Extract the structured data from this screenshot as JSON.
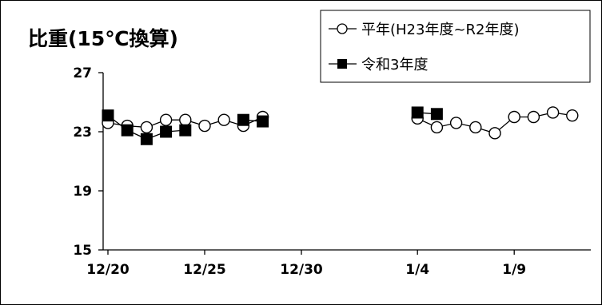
{
  "chart_data": {
    "type": "line",
    "title": "比重(15℃換算)",
    "xlabel": "",
    "ylabel": "",
    "ylim": [
      15,
      27
    ],
    "yticks": [
      "15",
      "19",
      "23",
      "27"
    ],
    "xticks": [
      "12/20",
      "12/25",
      "12/30",
      "1/4",
      "1/9"
    ],
    "legend_position": "top-right",
    "series": [
      {
        "name": "平年(H23年度~R2年度)",
        "marker": "open-circle",
        "color": "#000000",
        "segments": [
          {
            "x": [
              "12/20",
              "12/21",
              "12/22",
              "12/23",
              "12/24",
              "12/25",
              "12/26",
              "12/27",
              "12/28"
            ],
            "y": [
              23.6,
              23.4,
              23.3,
              23.8,
              23.8,
              23.4,
              23.8,
              23.4,
              24.0
            ]
          },
          {
            "x": [
              "1/4",
              "1/5",
              "1/6",
              "1/7",
              "1/8",
              "1/9",
              "1/10",
              "1/11",
              "1/12"
            ],
            "y": [
              23.9,
              23.3,
              23.6,
              23.3,
              22.9,
              24.0,
              24.0,
              24.3,
              24.1
            ]
          }
        ]
      },
      {
        "name": "令和3年度",
        "marker": "filled-square",
        "color": "#000000",
        "segments": [
          {
            "x": [
              "12/20",
              "12/21",
              "12/22",
              "12/23",
              "12/24"
            ],
            "y": [
              24.1,
              23.1,
              22.5,
              23.0,
              23.1
            ]
          },
          {
            "x": [
              "12/27",
              "12/28"
            ],
            "y": [
              23.8,
              23.7
            ]
          },
          {
            "x": [
              "1/4",
              "1/5"
            ],
            "y": [
              24.3,
              24.2
            ]
          }
        ]
      }
    ]
  }
}
